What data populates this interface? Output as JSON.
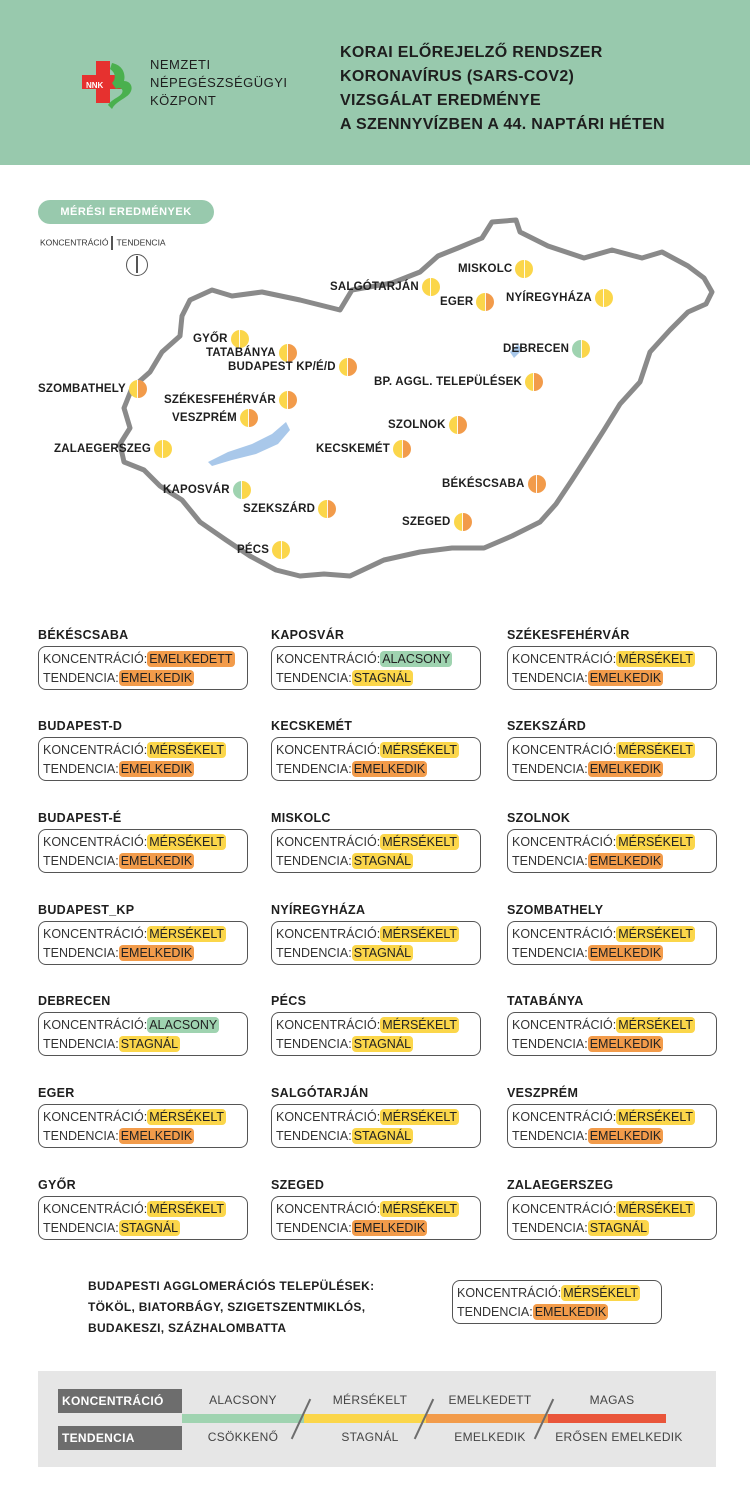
{
  "header": {
    "org_lines": [
      "NEMZETI",
      "NÉPEGÉSZSÉGÜGYI",
      "KÖZPONT"
    ],
    "logo_text": "NNK",
    "title_lines": [
      "KORAI ELŐREJELZŐ RENDSZER",
      "KORONAVÍRUS (SARS-CoV2)",
      "VIZSGÁLAT EREDMÉNYE",
      "A SZENNYVÍZBEN A 44. NAPTÁRI HÉTEN"
    ]
  },
  "map": {
    "badge": "MÉRÉSI EREDMÉNYEK",
    "legend_left": "KONCENTRÁCIÓ",
    "legend_right": "TENDENCIA",
    "cities": [
      {
        "name": "MISKOLC",
        "conc": "mersekelt",
        "tend": "stagnal"
      },
      {
        "name": "SALGÓTARJÁN",
        "conc": "mersekelt",
        "tend": "stagnal"
      },
      {
        "name": "EGER",
        "conc": "mersekelt",
        "tend": "emelkedik"
      },
      {
        "name": "NYÍREGYHÁZA",
        "conc": "mersekelt",
        "tend": "stagnal"
      },
      {
        "name": "GYŐR",
        "conc": "mersekelt",
        "tend": "stagnal"
      },
      {
        "name": "TATABÁNYA",
        "conc": "mersekelt",
        "tend": "emelkedik"
      },
      {
        "name": "BUDAPEST KP/É/D",
        "conc": "mersekelt",
        "tend": "emelkedik"
      },
      {
        "name": "DEBRECEN",
        "conc": "alacsony",
        "tend": "stagnal"
      },
      {
        "name": "BP. AGGL. TELEPÜLÉSEK",
        "conc": "mersekelt",
        "tend": "emelkedik"
      },
      {
        "name": "SZOMBATHELY",
        "conc": "mersekelt",
        "tend": "emelkedik"
      },
      {
        "name": "SZÉKESFEHÉRVÁR",
        "conc": "mersekelt",
        "tend": "emelkedik"
      },
      {
        "name": "VESZPRÉM",
        "conc": "mersekelt",
        "tend": "emelkedik"
      },
      {
        "name": "SZOLNOK",
        "conc": "mersekelt",
        "tend": "emelkedik"
      },
      {
        "name": "ZALAEGERSZEG",
        "conc": "mersekelt",
        "tend": "stagnal"
      },
      {
        "name": "KECSKEMÉT",
        "conc": "mersekelt",
        "tend": "emelkedik"
      },
      {
        "name": "BÉKÉSCSABA",
        "conc": "emelkedett",
        "tend": "emelkedik"
      },
      {
        "name": "KAPOSVÁR",
        "conc": "alacsony",
        "tend": "stagnal"
      },
      {
        "name": "SZEKSZÁRD",
        "conc": "mersekelt",
        "tend": "emelkedik"
      },
      {
        "name": "SZEGED",
        "conc": "mersekelt",
        "tend": "emelkedik"
      },
      {
        "name": "PÉCS",
        "conc": "mersekelt",
        "tend": "stagnal"
      }
    ]
  },
  "labels": {
    "conc_prefix": "KONCENTRÁCIÓ:",
    "tend_prefix": "TENDENCIA:"
  },
  "cards": [
    {
      "name": "BÉKÉSCSABA",
      "conc": "EMELKEDETT",
      "conc_key": "emelkedett",
      "tend": "EMELKEDIK",
      "tend_key": "emelkedik"
    },
    {
      "name": "KAPOSVÁR",
      "conc": "ALACSONY",
      "conc_key": "alacsony",
      "tend": "STAGNÁL",
      "tend_key": "stagnal"
    },
    {
      "name": "SZÉKESFEHÉRVÁR",
      "conc": "MÉRSÉKELT",
      "conc_key": "mersekelt",
      "tend": "EMELKEDIK",
      "tend_key": "emelkedik"
    },
    {
      "name": "BUDAPEST-D",
      "conc": "MÉRSÉKELT",
      "conc_key": "mersekelt",
      "tend": "EMELKEDIK",
      "tend_key": "emelkedik"
    },
    {
      "name": "KECSKEMÉT",
      "conc": "MÉRSÉKELT",
      "conc_key": "mersekelt",
      "tend": "EMELKEDIK",
      "tend_key": "emelkedik"
    },
    {
      "name": "SZEKSZÁRD",
      "conc": "MÉRSÉKELT",
      "conc_key": "mersekelt",
      "tend": "EMELKEDIK",
      "tend_key": "emelkedik"
    },
    {
      "name": "BUDAPEST-É",
      "conc": "MÉRSÉKELT",
      "conc_key": "mersekelt",
      "tend": "EMELKEDIK",
      "tend_key": "emelkedik"
    },
    {
      "name": "MISKOLC",
      "conc": "MÉRSÉKELT",
      "conc_key": "mersekelt",
      "tend": "STAGNÁL",
      "tend_key": "stagnal"
    },
    {
      "name": "SZOLNOK",
      "conc": "MÉRSÉKELT",
      "conc_key": "mersekelt",
      "tend": "EMELKEDIK",
      "tend_key": "emelkedik"
    },
    {
      "name": "BUDAPEST_KP",
      "conc": "MÉRSÉKELT",
      "conc_key": "mersekelt",
      "tend": "EMELKEDIK",
      "tend_key": "emelkedik"
    },
    {
      "name": "NYÍREGYHÁZA",
      "conc": "MÉRSÉKELT",
      "conc_key": "mersekelt",
      "tend": "STAGNÁL",
      "tend_key": "stagnal"
    },
    {
      "name": "SZOMBATHELY",
      "conc": "MÉRSÉKELT",
      "conc_key": "mersekelt",
      "tend": "EMELKEDIK",
      "tend_key": "emelkedik"
    },
    {
      "name": "DEBRECEN",
      "conc": "ALACSONY",
      "conc_key": "alacsony",
      "tend": "STAGNÁL",
      "tend_key": "stagnal"
    },
    {
      "name": "PÉCS",
      "conc": "MÉRSÉKELT",
      "conc_key": "mersekelt",
      "tend": "STAGNÁL",
      "tend_key": "stagnal"
    },
    {
      "name": "TATABÁNYA",
      "conc": "MÉRSÉKELT",
      "conc_key": "mersekelt",
      "tend": "EMELKEDIK",
      "tend_key": "emelkedik"
    },
    {
      "name": "EGER",
      "conc": "MÉRSÉKELT",
      "conc_key": "mersekelt",
      "tend": "EMELKEDIK",
      "tend_key": "emelkedik"
    },
    {
      "name": "SALGÓTARJÁN",
      "conc": "MÉRSÉKELT",
      "conc_key": "mersekelt",
      "tend": "STAGNÁL",
      "tend_key": "stagnal"
    },
    {
      "name": "VESZPRÉM",
      "conc": "MÉRSÉKELT",
      "conc_key": "mersekelt",
      "tend": "EMELKEDIK",
      "tend_key": "emelkedik"
    },
    {
      "name": "GYŐR",
      "conc": "MÉRSÉKELT",
      "conc_key": "mersekelt",
      "tend": "STAGNÁL",
      "tend_key": "stagnal"
    },
    {
      "name": "SZEGED",
      "conc": "MÉRSÉKELT",
      "conc_key": "mersekelt",
      "tend": "EMELKEDIK",
      "tend_key": "emelkedik"
    },
    {
      "name": "ZALAEGERSZEG",
      "conc": "MÉRSÉKELT",
      "conc_key": "mersekelt",
      "tend": "STAGNÁL",
      "tend_key": "stagnal"
    }
  ],
  "agglomeration": {
    "lines": [
      "BUDAPESTI AGGLOMERÁCIÓS TELEPÜLÉSEK:",
      "TÖKÖL, BIATORBÁGY, SZIGETSZENTMIKLÓS,",
      "BUDAKESZI, SZÁZHALOMBATTA"
    ],
    "conc": "MÉRSÉKELT",
    "conc_key": "mersekelt",
    "tend": "EMELKEDIK",
    "tend_key": "emelkedik"
  },
  "legend": {
    "conc_title": "KONCENTRÁCIÓ",
    "tend_title": "TENDENCIA",
    "conc_levels": [
      "ALACSONY",
      "MÉRSÉKELT",
      "EMELKEDETT",
      "MAGAS"
    ],
    "tend_levels": [
      "CSÖKKENŐ",
      "STAGNÁL",
      "EMELKEDIK",
      "ERŐSEN EMELKEDIK"
    ],
    "colors": [
      "#9fd3b0",
      "#fbd64a",
      "#f29b4a",
      "#e9553a"
    ]
  },
  "colors": {
    "alacsony": "#9fd3b0",
    "mersekelt": "#fbd64a",
    "stagnal": "#fbd64a",
    "emelkedett": "#f29b4a",
    "emelkedik": "#f29b4a",
    "magas": "#e9553a",
    "header_bg": "#98c9ad",
    "map_border": "#8a8a8a",
    "water": "#a9c8ea"
  }
}
